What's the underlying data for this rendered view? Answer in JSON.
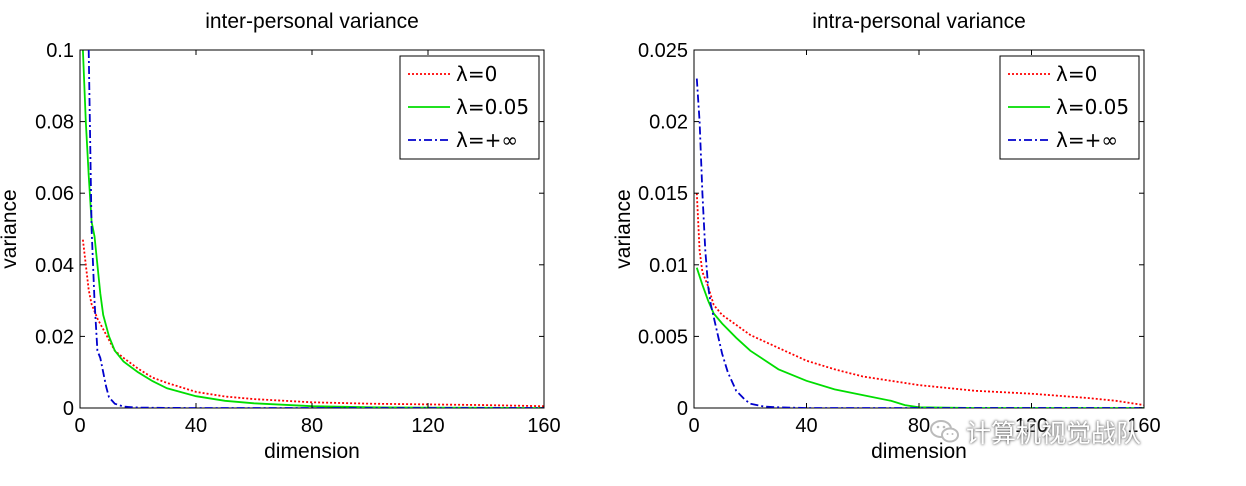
{
  "chart_data": [
    {
      "type": "line",
      "title": "inter-personal variance",
      "xlabel": "dimension",
      "ylabel": "variance",
      "xlim": [
        0,
        160
      ],
      "ylim": [
        0,
        0.1
      ],
      "xticks": [
        "0",
        "40",
        "80",
        "120",
        "160"
      ],
      "xtick_values": [
        0,
        40,
        80,
        120,
        160
      ],
      "yticks": [
        "0",
        "0.02",
        "0.04",
        "0.06",
        "0.08",
        "0.1"
      ],
      "ytick_values": [
        0,
        0.02,
        0.04,
        0.06,
        0.08,
        0.1
      ],
      "legend_position": "top-right",
      "grid": false,
      "series": [
        {
          "name": "λ=0",
          "color": "#ff0000",
          "style": "dotted",
          "x": [
            1,
            2,
            3,
            4,
            5,
            6,
            8,
            10,
            12,
            15,
            20,
            25,
            30,
            40,
            50,
            60,
            80,
            100,
            120,
            140,
            160
          ],
          "y": [
            0.047,
            0.04,
            0.033,
            0.029,
            0.027,
            0.025,
            0.022,
            0.019,
            0.016,
            0.014,
            0.011,
            0.0085,
            0.007,
            0.0045,
            0.0032,
            0.0025,
            0.0016,
            0.0012,
            0.001,
            0.0008,
            0.0005
          ]
        },
        {
          "name": "λ=0.05",
          "color": "#00dd00",
          "style": "solid",
          "x": [
            1,
            2,
            3,
            4,
            5,
            6,
            7,
            8,
            10,
            12,
            15,
            20,
            25,
            30,
            40,
            50,
            60,
            80,
            100,
            120,
            140,
            160
          ],
          "y": [
            0.1,
            0.08,
            0.065,
            0.052,
            0.048,
            0.04,
            0.032,
            0.026,
            0.02,
            0.016,
            0.013,
            0.01,
            0.0075,
            0.0055,
            0.0033,
            0.002,
            0.0013,
            0.0005,
            0.0002,
            0.0001,
            5e-05,
            0.0
          ]
        },
        {
          "name": "λ=+∞",
          "color": "#0000cc",
          "style": "dashdot",
          "x": [
            3,
            4,
            5,
            6,
            7,
            8,
            9,
            10,
            12,
            15,
            20,
            30,
            40,
            60,
            80,
            100,
            120,
            140,
            160
          ],
          "y": [
            0.1,
            0.05,
            0.03,
            0.016,
            0.014,
            0.01,
            0.006,
            0.003,
            0.0012,
            0.0004,
            0.0001,
            3e-05,
            0.0,
            0.0,
            0.0,
            0.0,
            0.0,
            0.0,
            0.0
          ]
        }
      ]
    },
    {
      "type": "line",
      "title": "intra-personal variance",
      "xlabel": "dimension",
      "ylabel": "variance",
      "xlim": [
        0,
        160
      ],
      "ylim": [
        0,
        0.025
      ],
      "xticks": [
        "0",
        "40",
        "80",
        "120",
        "160"
      ],
      "xtick_values": [
        0,
        40,
        80,
        120,
        160
      ],
      "yticks": [
        "0",
        "0.005",
        "0.01",
        "0.015",
        "0.02",
        "0.025"
      ],
      "ytick_values": [
        0,
        0.005,
        0.01,
        0.015,
        0.02,
        0.025
      ],
      "legend_position": "top-right",
      "grid": false,
      "series": [
        {
          "name": "λ=0",
          "color": "#ff0000",
          "style": "dotted",
          "x": [
            1,
            2,
            3,
            5,
            7,
            10,
            15,
            20,
            30,
            40,
            50,
            60,
            80,
            100,
            120,
            140,
            150,
            160
          ],
          "y": [
            0.015,
            0.011,
            0.0095,
            0.0085,
            0.0072,
            0.0065,
            0.0058,
            0.0051,
            0.0042,
            0.0033,
            0.0027,
            0.0022,
            0.0016,
            0.0012,
            0.001,
            0.0007,
            0.0005,
            0.0002
          ]
        },
        {
          "name": "λ=0.05",
          "color": "#00dd00",
          "style": "solid",
          "x": [
            1,
            2,
            3,
            5,
            7,
            10,
            15,
            20,
            30,
            40,
            50,
            60,
            70,
            75,
            80,
            100,
            120,
            140,
            160
          ],
          "y": [
            0.0098,
            0.0092,
            0.0086,
            0.0075,
            0.0066,
            0.0059,
            0.0049,
            0.004,
            0.0027,
            0.0019,
            0.0013,
            0.0009,
            0.0005,
            0.0002,
            5e-05,
            0.0,
            0.0,
            0.0,
            0.0
          ]
        },
        {
          "name": "λ=+∞",
          "color": "#0000cc",
          "style": "dashdot",
          "x": [
            1,
            2,
            3,
            4,
            5,
            6,
            8,
            10,
            12,
            15,
            18,
            20,
            25,
            30,
            40,
            60,
            80,
            120,
            160
          ],
          "y": [
            0.023,
            0.02,
            0.015,
            0.011,
            0.0085,
            0.0072,
            0.0055,
            0.0038,
            0.0025,
            0.0012,
            0.0006,
            0.0003,
            0.0001,
            5e-05,
            0.0,
            0.0,
            0.0,
            0.0,
            0.0
          ]
        }
      ]
    }
  ],
  "watermark": {
    "text": "计算机视觉战队",
    "icon": "wechat-icon"
  }
}
